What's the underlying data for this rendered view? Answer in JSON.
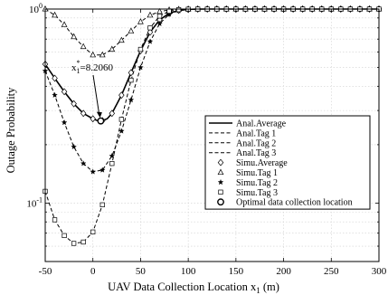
{
  "chart_data": {
    "type": "line",
    "xlabel": "UAV Data Collection Location x",
    "xlabel_sub": "1",
    "xlabel_unit": " (m)",
    "ylabel": "Outage Probability",
    "xlim": [
      -50,
      300
    ],
    "ylim": [
      0.05,
      1
    ],
    "y_scale": "log",
    "grid": true,
    "x_ticks": [
      -50,
      0,
      50,
      100,
      150,
      200,
      250,
      300
    ],
    "x_tick_labels": [
      "-50",
      "0",
      "50",
      "100",
      "150",
      "200",
      "250",
      "300"
    ],
    "y_ticks": [
      {
        "value": 0.1,
        "base": "10",
        "exp": "-1"
      },
      {
        "value": 1,
        "base": "10",
        "exp": "0"
      }
    ],
    "legend_position": "bottom-right",
    "annotation": {
      "label_main": "x",
      "label_sub": "1",
      "label_sup": "*",
      "label_value": "=8.2060",
      "x": 8.206,
      "y": 0.265
    },
    "series": [
      {
        "name": "Anal.Average",
        "style": "solid",
        "width": 1.6,
        "x": [
          -50,
          -40,
          -30,
          -20,
          -10,
          0,
          5,
          8.206,
          10,
          15,
          20,
          30,
          40,
          50,
          60,
          70,
          80,
          90,
          100,
          110,
          120,
          130,
          150,
          200,
          250,
          300
        ],
        "y": [
          0.52,
          0.44,
          0.375,
          0.325,
          0.29,
          0.272,
          0.266,
          0.265,
          0.266,
          0.272,
          0.29,
          0.36,
          0.47,
          0.61,
          0.76,
          0.88,
          0.95,
          0.985,
          0.996,
          0.999,
          1,
          1,
          1,
          1,
          1,
          1
        ]
      },
      {
        "name": "Anal.Tag 1",
        "style": "dashed",
        "width": 1,
        "x": [
          -50,
          -40,
          -30,
          -20,
          -10,
          0,
          10,
          20,
          30,
          40,
          50,
          60,
          70,
          80,
          90,
          100,
          110,
          120,
          150,
          200,
          250,
          300
        ],
        "y": [
          1,
          0.93,
          0.83,
          0.72,
          0.64,
          0.58,
          0.58,
          0.62,
          0.69,
          0.77,
          0.86,
          0.93,
          0.97,
          0.99,
          0.997,
          1,
          1,
          1,
          1,
          1,
          1,
          1
        ]
      },
      {
        "name": "Anal.Tag 2",
        "style": "dashed",
        "width": 1,
        "x": [
          -50,
          -40,
          -30,
          -20,
          -10,
          0,
          10,
          20,
          30,
          40,
          50,
          60,
          70,
          80,
          90,
          100,
          110,
          120,
          150,
          200,
          250,
          300
        ],
        "y": [
          0.48,
          0.36,
          0.26,
          0.195,
          0.16,
          0.145,
          0.148,
          0.175,
          0.235,
          0.34,
          0.5,
          0.68,
          0.84,
          0.94,
          0.98,
          0.995,
          0.999,
          1,
          1,
          1,
          1,
          1
        ]
      },
      {
        "name": "Anal.Tag 3",
        "style": "dashed",
        "width": 1,
        "x": [
          -50,
          -40,
          -30,
          -20,
          -10,
          0,
          10,
          20,
          30,
          40,
          50,
          60,
          70,
          80,
          90,
          100,
          110,
          120,
          150,
          200,
          250,
          300
        ],
        "y": [
          0.115,
          0.082,
          0.068,
          0.062,
          0.063,
          0.071,
          0.098,
          0.16,
          0.27,
          0.43,
          0.62,
          0.8,
          0.92,
          0.975,
          0.993,
          0.998,
          1,
          1,
          1,
          1,
          1,
          1
        ]
      },
      {
        "name": "Simu.Average",
        "marker": "diamond",
        "x": [
          -50,
          -40,
          -30,
          -20,
          -10,
          0,
          10,
          20,
          30,
          40,
          50,
          60,
          70,
          80,
          90,
          100,
          110,
          120,
          130,
          140,
          150,
          160,
          170,
          180,
          190,
          200,
          210,
          220,
          230,
          240,
          250,
          260,
          270,
          280,
          290,
          300
        ],
        "y": [
          0.52,
          0.44,
          0.375,
          0.325,
          0.29,
          0.272,
          0.266,
          0.29,
          0.36,
          0.47,
          0.61,
          0.76,
          0.88,
          0.95,
          0.985,
          0.996,
          0.999,
          1,
          1,
          1,
          1,
          1,
          1,
          1,
          1,
          1,
          1,
          1,
          1,
          1,
          1,
          1,
          1,
          1,
          1,
          1
        ]
      },
      {
        "name": "Simu.Tag 1",
        "marker": "triangle",
        "x": [
          -50,
          -40,
          -30,
          -20,
          -10,
          0,
          10,
          20,
          30,
          40,
          50,
          60,
          70,
          80,
          90,
          100,
          110,
          120,
          130,
          140,
          150,
          160,
          170,
          180,
          190,
          200,
          210,
          220,
          230,
          240,
          250,
          260,
          270,
          280,
          290,
          300
        ],
        "y": [
          1,
          0.93,
          0.83,
          0.72,
          0.64,
          0.58,
          0.58,
          0.62,
          0.69,
          0.77,
          0.86,
          0.93,
          0.97,
          0.99,
          0.997,
          1,
          1,
          1,
          1,
          1,
          1,
          1,
          1,
          1,
          1,
          1,
          1,
          1,
          1,
          1,
          1,
          1,
          1,
          1,
          1,
          1
        ]
      },
      {
        "name": "Simu.Tag 2",
        "marker": "star",
        "x": [
          -50,
          -40,
          -30,
          -20,
          -10,
          0,
          10,
          20,
          30,
          40,
          50,
          60,
          70,
          80,
          90,
          100,
          110,
          120,
          130,
          140,
          150,
          160,
          170,
          180,
          190,
          200,
          210,
          220,
          230,
          240,
          250,
          260,
          270,
          280,
          290,
          300
        ],
        "y": [
          0.48,
          0.36,
          0.26,
          0.195,
          0.16,
          0.145,
          0.148,
          0.175,
          0.235,
          0.34,
          0.5,
          0.68,
          0.84,
          0.94,
          0.98,
          0.995,
          0.999,
          1,
          1,
          1,
          1,
          1,
          1,
          1,
          1,
          1,
          1,
          1,
          1,
          1,
          1,
          1,
          1,
          1,
          1,
          1
        ]
      },
      {
        "name": "Simu.Tag 3",
        "marker": "square",
        "x": [
          -50,
          -40,
          -30,
          -20,
          -10,
          0,
          10,
          20,
          30,
          40,
          50,
          60,
          70,
          80,
          90,
          100,
          110,
          120,
          130,
          140,
          150,
          160,
          170,
          180,
          190,
          200,
          210,
          220,
          230,
          240,
          250,
          260,
          270,
          280,
          290,
          300
        ],
        "y": [
          0.115,
          0.082,
          0.068,
          0.062,
          0.063,
          0.071,
          0.098,
          0.16,
          0.27,
          0.43,
          0.62,
          0.8,
          0.92,
          0.975,
          0.993,
          0.998,
          1,
          1,
          1,
          1,
          1,
          1,
          1,
          1,
          1,
          1,
          1,
          1,
          1,
          1,
          1,
          1,
          1,
          1,
          1,
          1
        ]
      },
      {
        "name": "Optimal data collection location",
        "marker": "circle",
        "x": [
          8.206
        ],
        "y": [
          0.265
        ]
      }
    ]
  }
}
